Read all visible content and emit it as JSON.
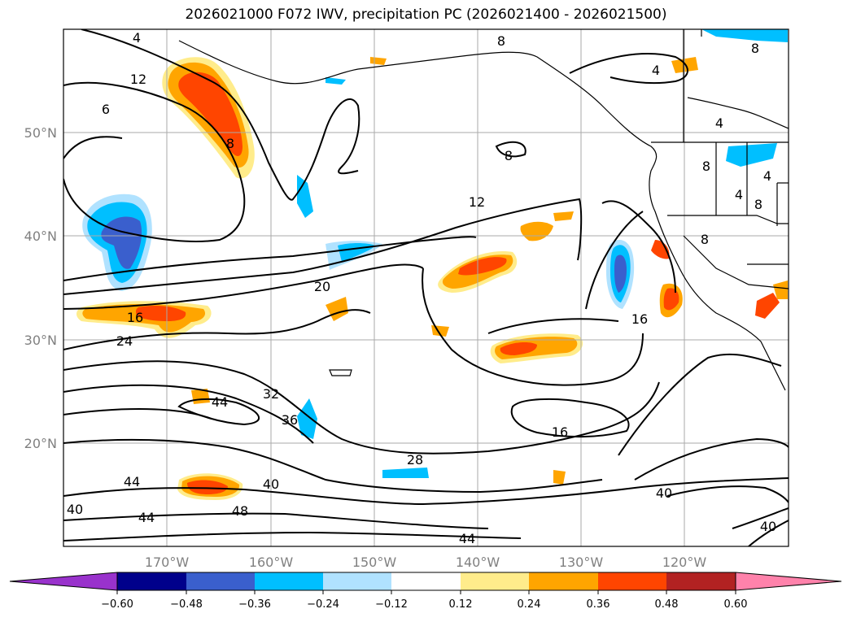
{
  "title": "2026021000 F072 IWV, precipitation PC (2026021400 - 2026021500)",
  "map": {
    "lon_labels": [
      "170°W",
      "160°W",
      "150°W",
      "140°W",
      "130°W",
      "120°W"
    ],
    "lat_labels": [
      "50°N",
      "40°N",
      "30°N",
      "20°N"
    ],
    "lon_values": [
      -170,
      -160,
      -150,
      -140,
      -130,
      -120
    ],
    "lat_values": [
      50,
      40,
      30,
      20
    ],
    "extent": {
      "lon": [
        -180,
        -110
      ],
      "lat": [
        10,
        60
      ]
    },
    "gridlines": true,
    "contour_labels": [
      "4",
      "12",
      "6",
      "8",
      "8",
      "4",
      "8",
      "4",
      "4",
      "8",
      "8",
      "8",
      "4",
      "8",
      "12",
      "20",
      "16",
      "16",
      "24",
      "32",
      "36",
      "44",
      "16",
      "28",
      "44",
      "40",
      "48",
      "44",
      "40",
      "40",
      "40",
      "44"
    ]
  },
  "colorbar": {
    "ticks": [
      "−0.60",
      "−0.48",
      "−0.36",
      "−0.24",
      "−0.12",
      "0.12",
      "0.24",
      "0.36",
      "0.48",
      "0.60"
    ],
    "colors": [
      "#9932cc",
      "#00008b",
      "#3a5fcd",
      "#00bfff",
      "#b0e2ff",
      "#ffffff",
      "#ffec8b",
      "#ffa500",
      "#ff4500",
      "#b22222",
      "#ff82ab"
    ]
  }
}
